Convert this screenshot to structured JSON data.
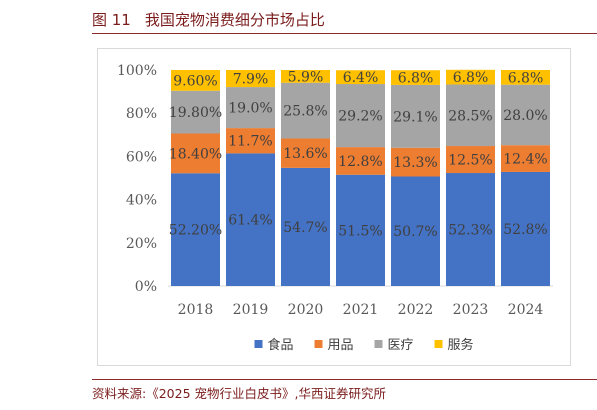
{
  "header": {
    "figure_number": "图 11",
    "title": "我国宠物消费细分市场占比"
  },
  "footer": {
    "source": "资料来源:《2025 宠物行业白皮书》,华西证券研究所"
  },
  "chart_data": {
    "type": "bar",
    "stacked": true,
    "categories": [
      "2018",
      "2019",
      "2020",
      "2021",
      "2022",
      "2023",
      "2024"
    ],
    "series": [
      {
        "name": "食品",
        "color": "#4472c4",
        "values": [
          52.2,
          61.4,
          54.7,
          51.5,
          50.7,
          52.3,
          52.8
        ],
        "labels": [
          "52.20%",
          "61.4%",
          "54.7%",
          "51.5%",
          "50.7%",
          "52.3%",
          "52.8%"
        ]
      },
      {
        "name": "用品",
        "color": "#ed7d31",
        "values": [
          18.4,
          11.7,
          13.6,
          12.8,
          13.3,
          12.5,
          12.4
        ],
        "labels": [
          "18.40%",
          "11.7%",
          "13.6%",
          "12.8%",
          "13.3%",
          "12.5%",
          "12.4%"
        ]
      },
      {
        "name": "医疗",
        "color": "#a5a5a5",
        "values": [
          19.8,
          19.0,
          25.8,
          29.2,
          29.1,
          28.5,
          28.0
        ],
        "labels": [
          "19.80%",
          "19.0%",
          "25.8%",
          "29.2%",
          "29.1%",
          "28.5%",
          "28.0%"
        ]
      },
      {
        "name": "服务",
        "color": "#ffc000",
        "values": [
          9.6,
          7.9,
          5.9,
          6.4,
          6.8,
          6.8,
          6.8
        ],
        "labels": [
          "9.60%",
          "7.9%",
          "5.9%",
          "6.4%",
          "6.8%",
          "6.8%",
          "6.8%"
        ]
      }
    ],
    "ylim": [
      0,
      100
    ],
    "yticks": [
      "0%",
      "20%",
      "40%",
      "60%",
      "80%",
      "100%"
    ],
    "legend_position": "bottom",
    "grid": false
  }
}
